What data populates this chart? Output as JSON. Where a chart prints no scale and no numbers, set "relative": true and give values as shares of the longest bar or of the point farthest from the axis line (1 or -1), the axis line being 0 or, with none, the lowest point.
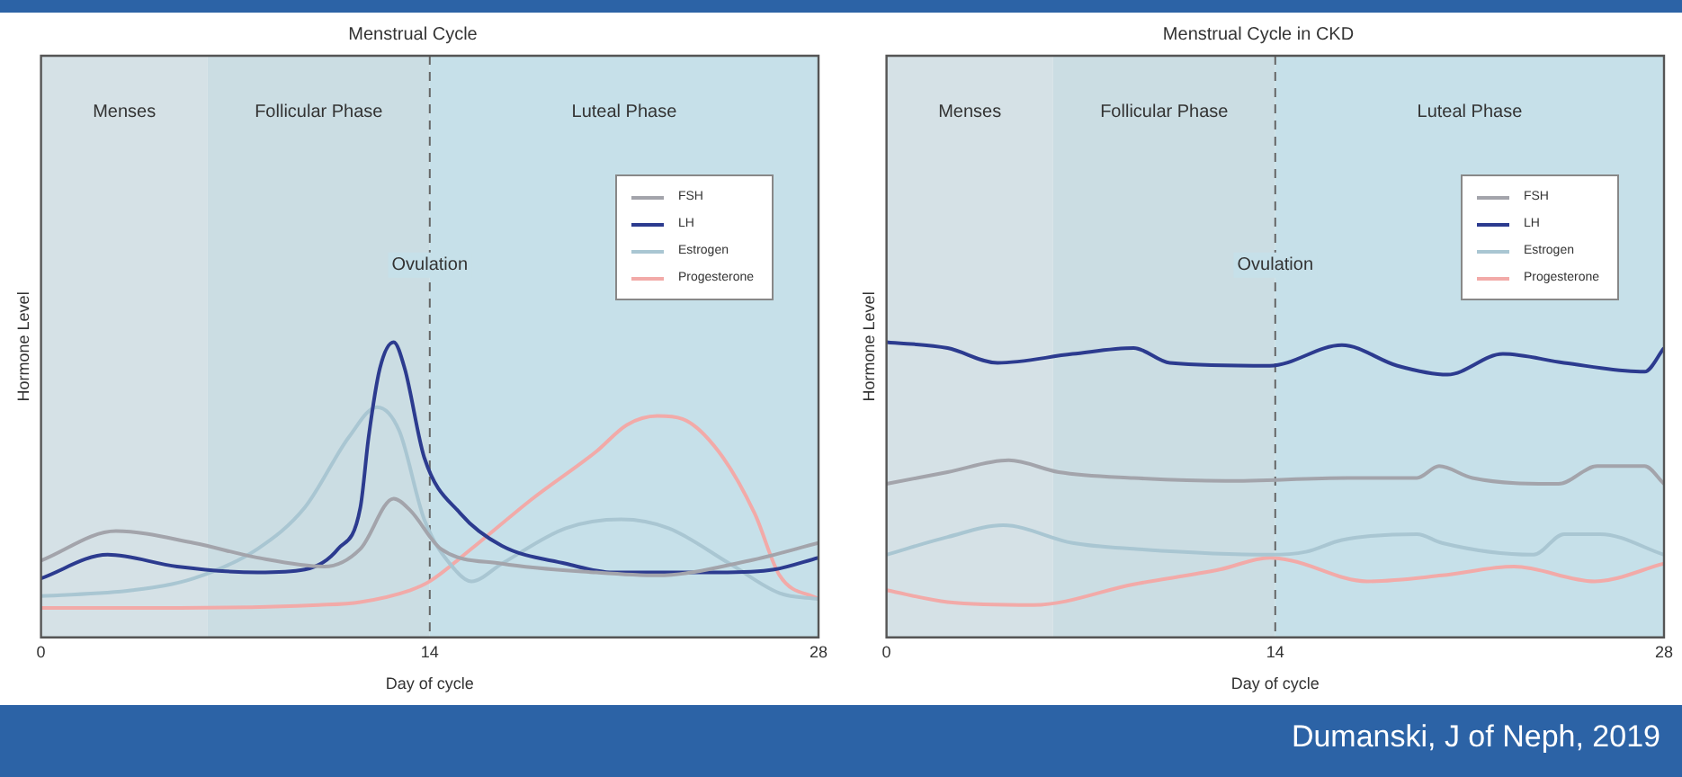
{
  "chart_data": [
    {
      "type": "line",
      "title": "Menstrual Cycle",
      "xlabel": "Day of cycle",
      "ylabel": "Hormone Level",
      "relative": true,
      "xlim": [
        0,
        28
      ],
      "xticks": [
        0,
        14,
        28
      ],
      "legend": "top right",
      "bands": [
        {
          "axis": "x",
          "from": 0,
          "to": 6,
          "label": "Menses",
          "color": "#d5e1e6"
        },
        {
          "axis": "x",
          "from": 6,
          "to": 14,
          "label": "Follicular Phase",
          "color": "#cbdde3"
        },
        {
          "axis": "x",
          "from": 14,
          "to": 28,
          "label": "Luteal Phase",
          "color": "#c6e0e9"
        }
      ],
      "ref_lines": [
        {
          "axis": "x",
          "value": 14,
          "label": "Ovulation",
          "line_style": "dashed"
        }
      ],
      "series": [
        {
          "name": "FSH",
          "color": "#a3a4ab",
          "x": [
            0,
            2.7,
            5.5,
            7.8,
            10.2,
            11.5,
            12.7,
            13.3,
            14.4,
            16.6,
            20,
            22.2,
            25.5,
            28
          ],
          "values": [
            0.26,
            0.36,
            0.32,
            0.27,
            0.24,
            0.3,
            0.47,
            0.43,
            0.3,
            0.25,
            0.22,
            0.21,
            0.26,
            0.32
          ]
        },
        {
          "name": "LH",
          "color": "#2c3b8f",
          "x": [
            0,
            2.4,
            4.9,
            7.8,
            9.5,
            10.7,
            11.5,
            11.8,
            12.2,
            12.7,
            13.1,
            13.8,
            15.1,
            16.6,
            18.9,
            20.6,
            24.4,
            26.4,
            28
          ],
          "values": [
            0.2,
            0.28,
            0.24,
            0.22,
            0.23,
            0.3,
            0.44,
            0.68,
            0.91,
            1,
            0.91,
            0.61,
            0.42,
            0.31,
            0.25,
            0.22,
            0.22,
            0.23,
            0.27
          ]
        },
        {
          "name": "Estrogen",
          "color": "#a9c6d2",
          "x": [
            0,
            3.3,
            5.5,
            7.8,
            9.5,
            11.1,
            12.1,
            12.9,
            13.8,
            14.9,
            15.5,
            16.6,
            18.9,
            20.9,
            22.6,
            24.8,
            26.6,
            28
          ],
          "values": [
            0.14,
            0.16,
            0.2,
            0.3,
            0.44,
            0.68,
            0.78,
            0.7,
            0.4,
            0.23,
            0.19,
            0.25,
            0.37,
            0.4,
            0.37,
            0.25,
            0.15,
            0.13
          ]
        },
        {
          "name": "Progesterone",
          "color": "#f2aaa8",
          "x": [
            0,
            5,
            10,
            11.5,
            13.3,
            14,
            15.5,
            17.7,
            20,
            21.1,
            22.2,
            23.1,
            24.4,
            25.7,
            26.6,
            28
          ],
          "values": [
            0.1,
            0.1,
            0.11,
            0.12,
            0.16,
            0.19,
            0.3,
            0.47,
            0.63,
            0.72,
            0.75,
            0.74,
            0.63,
            0.42,
            0.21,
            0.13
          ]
        }
      ]
    },
    {
      "type": "line",
      "title": "Menstrual Cycle in CKD",
      "xlabel": "Day of cycle",
      "ylabel": "Hormone Level",
      "relative": true,
      "xlim": [
        0,
        28
      ],
      "xticks": [
        0,
        14,
        28
      ],
      "legend": "top right",
      "bands": [
        {
          "axis": "x",
          "from": 0,
          "to": 6,
          "label": "Menses",
          "color": "#d5e1e6"
        },
        {
          "axis": "x",
          "from": 6,
          "to": 14,
          "label": "Follicular Phase",
          "color": "#cbdde3"
        },
        {
          "axis": "x",
          "from": 14,
          "to": 28,
          "label": "Luteal Phase",
          "color": "#c6e0e9"
        }
      ],
      "ref_lines": [
        {
          "axis": "x",
          "value": 14,
          "label": "Ovulation",
          "line_style": "dashed"
        }
      ],
      "series": [
        {
          "name": "FSH",
          "color": "#a3a4ab",
          "x": [
            0,
            2.2,
            4.4,
            6.2,
            8.9,
            12.2,
            16.6,
            19.1,
            19.9,
            21.1,
            24.2,
            25.6,
            27.3,
            28
          ],
          "values": [
            0.52,
            0.56,
            0.6,
            0.56,
            0.54,
            0.53,
            0.54,
            0.54,
            0.58,
            0.54,
            0.52,
            0.58,
            0.58,
            0.52
          ]
        },
        {
          "name": "LH",
          "color": "#2c3b8f",
          "x": [
            0,
            2.2,
            4,
            6.7,
            8.9,
            10.2,
            13.8,
            16.4,
            18.4,
            20.2,
            22.2,
            24.4,
            27.3,
            28
          ],
          "values": [
            1,
            0.98,
            0.93,
            0.96,
            0.98,
            0.93,
            0.92,
            0.99,
            0.92,
            0.89,
            0.96,
            0.93,
            0.9,
            0.98
          ]
        },
        {
          "name": "Estrogen",
          "color": "#a9c6d2",
          "x": [
            0,
            2.2,
            4.2,
            6.7,
            8.9,
            13.8,
            15.1,
            16.4,
            19.1,
            20,
            23.3,
            24.4,
            25.7,
            28
          ],
          "values": [
            0.28,
            0.34,
            0.38,
            0.32,
            0.3,
            0.28,
            0.29,
            0.33,
            0.35,
            0.32,
            0.28,
            0.35,
            0.35,
            0.28
          ]
        },
        {
          "name": "Progesterone",
          "color": "#f2aaa8",
          "x": [
            0,
            2.2,
            5.3,
            8.9,
            12,
            13.8,
            14.6,
            17.3,
            20,
            22.6,
            25.5,
            28
          ],
          "values": [
            0.16,
            0.12,
            0.11,
            0.18,
            0.23,
            0.27,
            0.26,
            0.19,
            0.21,
            0.24,
            0.19,
            0.25
          ]
        }
      ],
      "annotations": [
        "Dumanski, J of Neph, 2019"
      ]
    }
  ]
}
